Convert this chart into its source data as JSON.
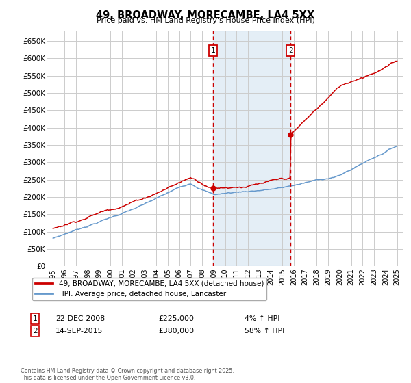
{
  "title": "49, BROADWAY, MORECAMBE, LA4 5XX",
  "subtitle": "Price paid vs. HM Land Registry's House Price Index (HPI)",
  "ylabel_ticks": [
    "£0",
    "£50K",
    "£100K",
    "£150K",
    "£200K",
    "£250K",
    "£300K",
    "£350K",
    "£400K",
    "£450K",
    "£500K",
    "£550K",
    "£600K",
    "£650K"
  ],
  "ytick_values": [
    0,
    50000,
    100000,
    150000,
    200000,
    250000,
    300000,
    350000,
    400000,
    450000,
    500000,
    550000,
    600000,
    650000
  ],
  "ylim": [
    0,
    680000
  ],
  "xlim_start": 1994.5,
  "xlim_end": 2025.5,
  "sale1_date": "22-DEC-2008",
  "sale1_price": 225000,
  "sale1_pct": "4%",
  "sale1_year": 2008.97,
  "sale2_date": "14-SEP-2015",
  "sale2_price": 380000,
  "sale2_pct": "58%",
  "sale2_year": 2015.71,
  "legend_property": "49, BROADWAY, MORECAMBE, LA4 5XX (detached house)",
  "legend_hpi": "HPI: Average price, detached house, Lancaster",
  "footer": "Contains HM Land Registry data © Crown copyright and database right 2025.\nThis data is licensed under the Open Government Licence v3.0.",
  "red_color": "#cc0000",
  "blue_color": "#6699cc",
  "shade_color": "#cfe0f0",
  "bg_color": "#ffffff",
  "grid_color": "#cccccc"
}
